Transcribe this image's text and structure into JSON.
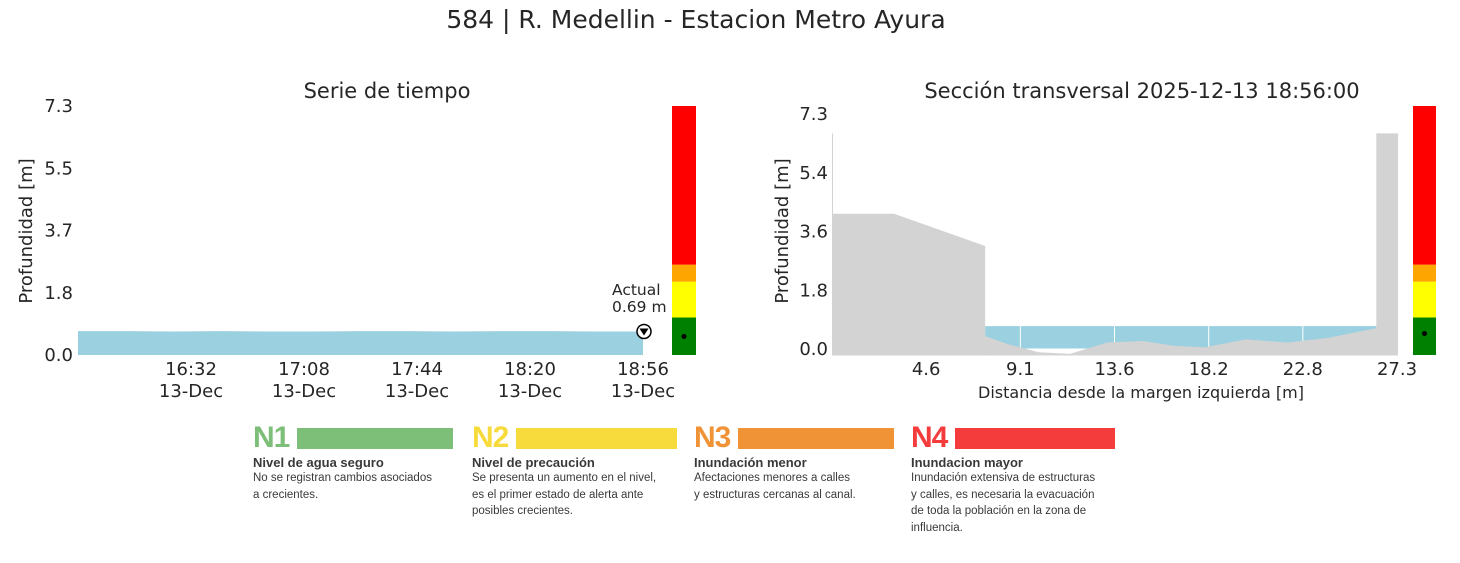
{
  "title": "584 | R. Medellin - Estacion Metro Ayura",
  "colors": {
    "water": "#9ad0e0",
    "terrain": "#d3d3d3",
    "level_green": "#008000",
    "level_yellow": "#ffff00",
    "level_orange": "#ffa500",
    "level_red": "#ff0000"
  },
  "chart_data": [
    {
      "type": "area",
      "title": "Serie de tiempo",
      "xlabel": "",
      "ylabel": "Profundidad [m]",
      "ylim": [
        0,
        7.3
      ],
      "yticks": [
        "0.0",
        "1.8",
        "3.7",
        "5.5",
        "7.3"
      ],
      "ytick_values": [
        0.0,
        1.825,
        3.65,
        5.475,
        7.3
      ],
      "xlim_minutes": [
        956,
        1136
      ],
      "xticks": [
        {
          "minute": 992,
          "time": "16:32",
          "date": "13-Dec"
        },
        {
          "minute": 1028,
          "time": "17:08",
          "date": "13-Dec"
        },
        {
          "minute": 1064,
          "time": "17:44",
          "date": "13-Dec"
        },
        {
          "minute": 1100,
          "time": "18:20",
          "date": "13-Dec"
        },
        {
          "minute": 1136,
          "time": "18:56",
          "date": "13-Dec"
        }
      ],
      "series": [
        {
          "name": "Profundidad",
          "x_minutes": [
            956,
            971,
            986,
            1001,
            1016,
            1031,
            1046,
            1061,
            1076,
            1091,
            1106,
            1121,
            1136
          ],
          "values": [
            0.7,
            0.7,
            0.69,
            0.7,
            0.69,
            0.69,
            0.7,
            0.7,
            0.69,
            0.7,
            0.7,
            0.69,
            0.69
          ]
        }
      ],
      "annotation": {
        "line1": "Actual",
        "line2": "0.69 m",
        "value": 0.69
      },
      "grid": false
    },
    {
      "type": "area",
      "title": "Sección transversal 2025-12-13 18:56:00",
      "xlabel": "Distancia desde la margen izquierda [m]",
      "ylabel": "Profundidad [m]",
      "xlim": [
        0,
        27.3
      ],
      "ylim": [
        0,
        7.3
      ],
      "xticks": [
        "4.6",
        "9.1",
        "13.6",
        "18.2",
        "22.8",
        "27.3"
      ],
      "xtick_values": [
        4.55,
        9.1,
        13.65,
        18.2,
        22.75,
        27.3
      ],
      "yticks": [
        "0.0",
        "1.8",
        "3.6",
        "5.4",
        "7.3"
      ],
      "ytick_values": [
        0.0,
        1.825,
        3.65,
        5.475,
        7.3
      ],
      "terrain": {
        "x": [
          0.0,
          0.05,
          0.05,
          3.0,
          7.4,
          7.4,
          8.5,
          10.0,
          11.5,
          13.3,
          15.0,
          16.5,
          18.0,
          20.0,
          22.0,
          24.0,
          26.3,
          26.3,
          27.3,
          27.3
        ],
        "y": [
          0.0,
          6.7,
          4.2,
          4.2,
          3.2,
          0.4,
          0.15,
          -0.1,
          -0.15,
          0.2,
          0.25,
          0.1,
          0.05,
          0.3,
          0.2,
          0.35,
          0.65,
          6.7,
          6.7,
          0.0
        ]
      },
      "water_level": 0.71,
      "water_extent": [
        7.4,
        26.3
      ],
      "grid": false
    }
  ],
  "level_bar": {
    "max": 7.3,
    "current": 0.69,
    "segments": [
      {
        "level": "N1",
        "from": 0.0,
        "to": 1.1,
        "color": "#008000"
      },
      {
        "level": "N2",
        "from": 1.1,
        "to": 2.15,
        "color": "#ffff00"
      },
      {
        "level": "N3",
        "from": 2.15,
        "to": 2.65,
        "color": "#ffa500"
      },
      {
        "level": "N4",
        "from": 2.65,
        "to": 7.3,
        "color": "#ff0000"
      }
    ]
  },
  "legend": [
    {
      "code": "N1",
      "name": "Nivel de agua seguro",
      "color": "#7dbf78",
      "description": [
        "No se registran cambios asociados",
        "a crecientes."
      ]
    },
    {
      "code": "N2",
      "name": "Nivel de precaución",
      "color": "#f7db3c",
      "description": [
        "Se presenta un aumento en el nivel,",
        "es el primer estado de alerta ante",
        "posibles crecientes."
      ]
    },
    {
      "code": "N3",
      "name": "Inundación menor",
      "color": "#f09236",
      "description": [
        "Afectaciones menores a calles",
        "y estructuras cercanas al canal."
      ]
    },
    {
      "code": "N4",
      "name": "Inundacion mayor",
      "color": "#f43c3c",
      "description": [
        "Inundación extensiva de estructuras",
        "y calles, es necesaria la evacuación",
        "de toda la población en la zona de",
        "influencia."
      ]
    }
  ]
}
